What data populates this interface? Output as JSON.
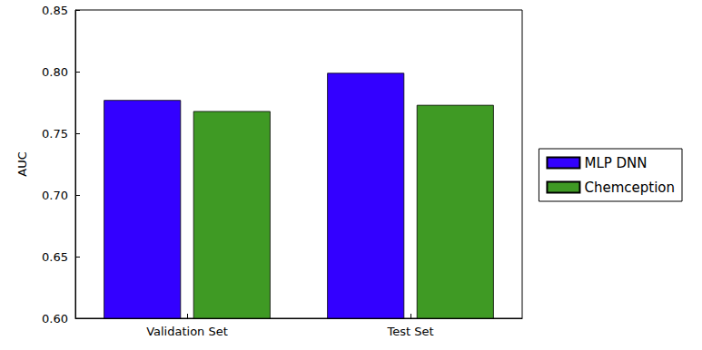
{
  "chart_data": {
    "type": "bar",
    "y_label": "AUC",
    "categories": [
      "Validation Set",
      "Test Set"
    ],
    "series": [
      {
        "name": "MLP DNN",
        "color": "#3300ff",
        "values": [
          0.777,
          0.799
        ]
      },
      {
        "name": "Chemception",
        "color": "#3f9a24",
        "values": [
          0.768,
          0.773
        ]
      }
    ],
    "ylim": [
      0.6,
      0.85
    ],
    "yticks": [
      {
        "value": 0.6,
        "label": "0.60"
      },
      0.65,
      {
        "value": 0.7,
        "label": "0.70"
      },
      0.75,
      {
        "value": 0.8,
        "label": "0.80"
      },
      0.85
    ],
    "grid": false,
    "legend": "right"
  }
}
